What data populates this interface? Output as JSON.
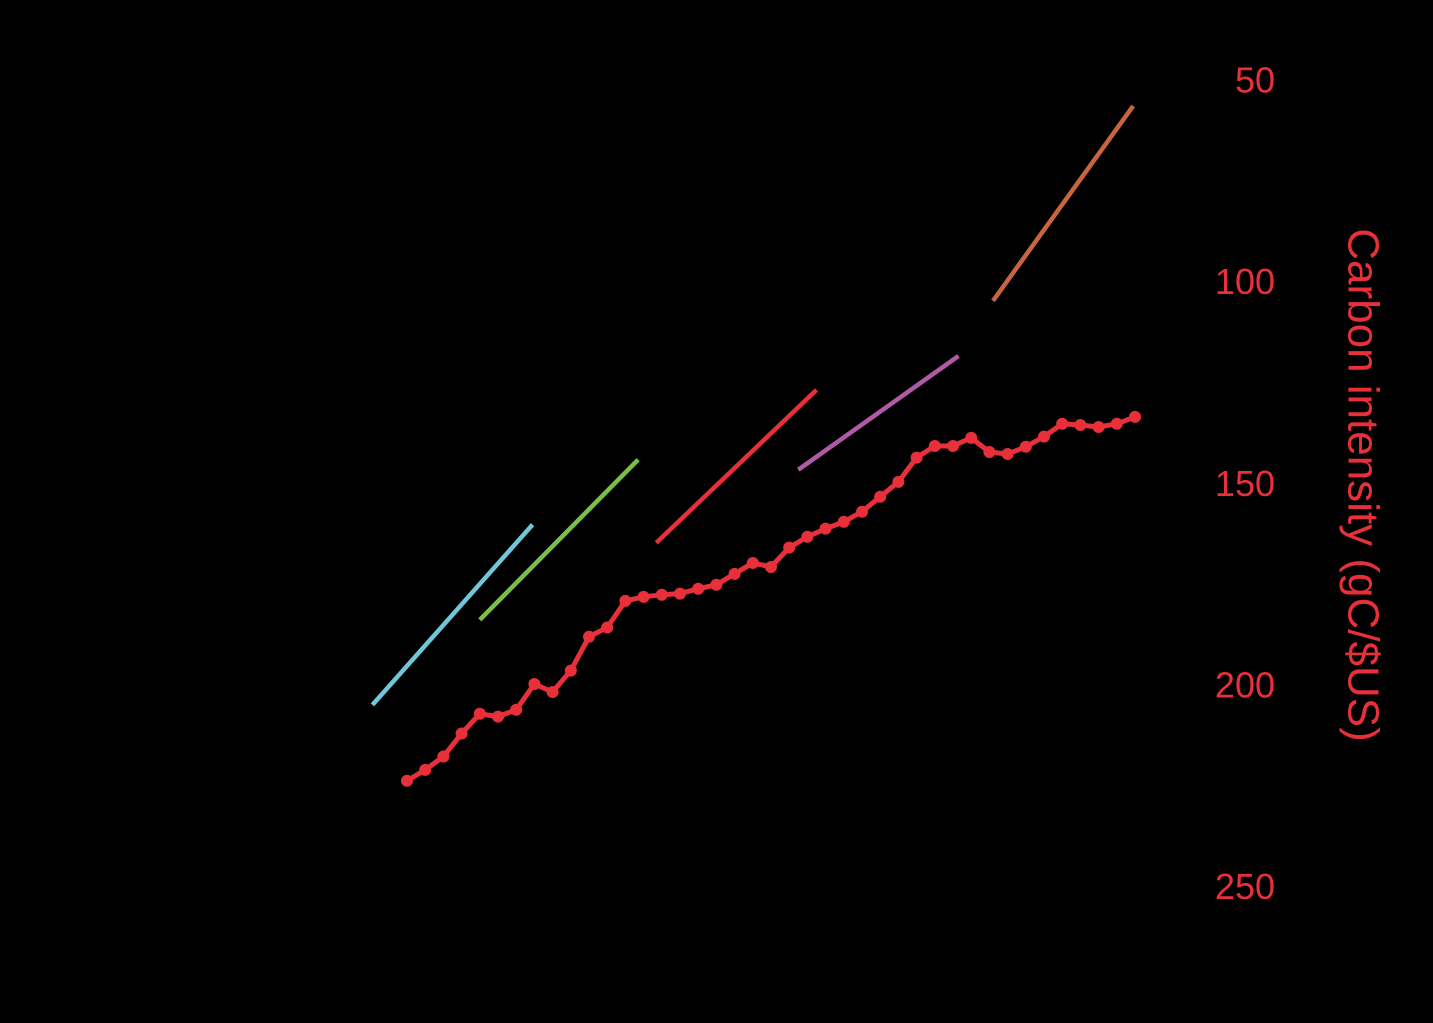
{
  "chart_data": {
    "type": "line",
    "y2label": "Carbon intensity (gC/$US)",
    "xlim": [
      1975,
      2025
    ],
    "y2lim": [
      260,
      40
    ],
    "y2ticks": [
      50,
      100,
      150,
      200,
      250
    ],
    "y2color": "#e8303a",
    "series": [
      {
        "color": "#e8303a",
        "axis": "y2",
        "markers": true,
        "x": [
          1980,
          1981,
          1982,
          1983,
          1984,
          1985,
          1986,
          1987,
          1988,
          1989,
          1990,
          1991,
          1992,
          1993,
          1994,
          1995,
          1996,
          1997,
          1998,
          1999,
          2000,
          2001,
          2002,
          2003,
          2004,
          2005,
          2006,
          2007,
          2008,
          2009,
          2010,
          2011,
          2012,
          2013,
          2014,
          2015,
          2016,
          2017,
          2018,
          2019,
          2020
        ],
        "values": [
          223,
          220.3,
          217,
          211.3,
          206.4,
          207.1,
          205.4,
          199,
          201,
          195.7,
          187.3,
          185,
          178.4,
          177.4,
          176.9,
          176.6,
          175.4,
          174.4,
          171.7,
          169,
          170,
          165.2,
          162.5,
          160.5,
          158.8,
          156.3,
          152.6,
          148.9,
          142.9,
          140,
          140,
          138,
          141.5,
          142,
          140.2,
          137.7,
          134.5,
          134.8,
          135.3,
          134.5,
          132.8
        ]
      },
      {
        "color": "#6fc7d8",
        "axis": "y2",
        "x": [
          1978.1,
          1986.9
        ],
        "values": [
          204.2,
          159.5
        ]
      },
      {
        "color": "#7bbf4a",
        "axis": "y2",
        "x": [
          1984.0,
          1992.7
        ],
        "values": [
          183.1,
          143.4
        ]
      },
      {
        "color": "#e8303a",
        "axis": "y2",
        "x": [
          1993.7,
          2002.5
        ],
        "values": [
          164,
          126.1
        ]
      },
      {
        "color": "#b05aa5",
        "axis": "y2",
        "x": [
          2001.5,
          2010.3
        ],
        "values": [
          145.9,
          117.7
        ]
      },
      {
        "color": "#c8653f",
        "axis": "y2",
        "x": [
          2012.2,
          2019.9
        ],
        "values": [
          104,
          55.7
        ]
      }
    ]
  }
}
